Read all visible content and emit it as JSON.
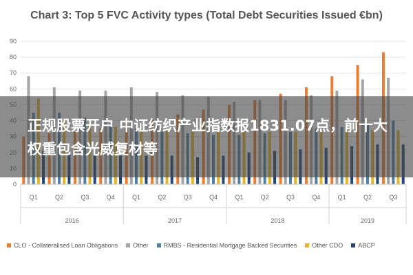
{
  "chart_data": {
    "type": "bar",
    "title": "Chart 3: Top 5 FVC Activity types (Total Debt Securities Issued €bn)",
    "xlabel": "",
    "ylabel": "",
    "ylim": [
      0,
      90
    ],
    "yticks": [
      0,
      10,
      20,
      30,
      40,
      50,
      60,
      70,
      80,
      90
    ],
    "grid": true,
    "legend_position": "bottom",
    "categories": [
      "Q1",
      "Q2",
      "Q3",
      "Q4",
      "Q1",
      "Q2",
      "Q3",
      "Q4",
      "Q1",
      "Q2",
      "Q3",
      "Q4",
      "Q1",
      "Q2",
      "Q3"
    ],
    "groups": [
      {
        "label": "2016",
        "count": 4
      },
      {
        "label": "2017",
        "count": 4
      },
      {
        "label": "2018",
        "count": 4
      },
      {
        "label": "2019",
        "count": 3
      }
    ],
    "series": [
      {
        "name": "CLO - Collateralised Loan Obligations",
        "color": "#ed7d31",
        "values": [
          30,
          32,
          33,
          35,
          38,
          41,
          44,
          47,
          50,
          53,
          57,
          61,
          68,
          75,
          83
        ]
      },
      {
        "name": "Other",
        "color": "#a5a5a5",
        "values": [
          68,
          61,
          59,
          59,
          61,
          58,
          56,
          55,
          52,
          53,
          53,
          56,
          59,
          66,
          67
        ]
      },
      {
        "name": "RMBS - Residential Mortgage Backed Securities",
        "color": "#4f81a5",
        "values": [
          45,
          45,
          42,
          38,
          35,
          33,
          32,
          31,
          31,
          32,
          33,
          35,
          36,
          38,
          40
        ]
      },
      {
        "name": "Other CDO",
        "color": "#e6b426",
        "values": [
          54,
          40,
          38,
          36,
          35,
          34,
          33,
          33,
          33,
          33,
          33,
          33,
          34,
          34,
          34
        ]
      },
      {
        "name": "ABCP",
        "color": "#264478",
        "values": [
          21,
          19,
          18,
          18,
          18,
          18,
          17,
          18,
          20,
          21,
          22,
          23,
          24,
          25,
          25
        ]
      }
    ]
  },
  "overlay": {
    "headline": "正规股票开户 中证纺织产业指数报1831.07点，前十大权重包含光威复材等"
  }
}
